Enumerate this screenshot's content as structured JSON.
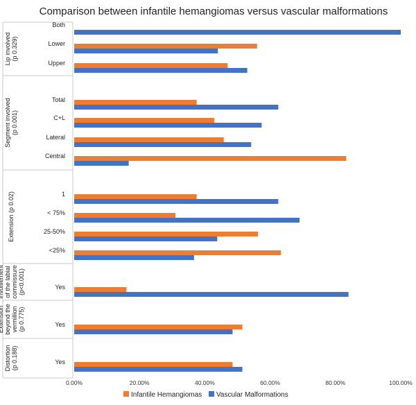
{
  "chart_data": {
    "type": "bar",
    "orientation": "horizontal",
    "title": "Comparison between infantile hemangiomas versus vascular malformations",
    "xlim": [
      0,
      100
    ],
    "x_ticks": [
      "0.00%",
      "20.00%",
      "40.00%",
      "60.00%",
      "80.00%",
      "100.00%"
    ],
    "legend": [
      "Infantile Hemangiomas",
      "Vascular Malformations"
    ],
    "legend_position": "bottom",
    "colors": {
      "ih": "#ED7D31",
      "vm": "#4472C4"
    },
    "groups": [
      {
        "label": [
          "Lip involved",
          "(p 0.329)"
        ],
        "categories": [
          {
            "label": "Both",
            "ih": 0,
            "vm": 100
          },
          {
            "label": "Lower",
            "ih": 56,
            "vm": 44
          },
          {
            "label": "Upper",
            "ih": 47,
            "vm": 53
          }
        ]
      },
      {
        "label": [
          "Segment involved",
          "(p 0.001)"
        ],
        "categories": [
          {
            "label": "Total",
            "ih": 37.5,
            "vm": 62.5
          },
          {
            "label": "C+L",
            "ih": 42.9,
            "vm": 57.4
          },
          {
            "label": "Lateral",
            "ih": 45.8,
            "vm": 54.2
          },
          {
            "label": "Central",
            "ih": 83.3,
            "vm": 16.7
          }
        ]
      },
      {
        "label": [
          "Extension (p 0.02)"
        ],
        "categories": [
          {
            "label": "1",
            "ih": 37.5,
            "vm": 62.5
          },
          {
            "label": "< 75%",
            "ih": 31,
            "vm": 69
          },
          {
            "label": "25-50%",
            "ih": 56.3,
            "vm": 43.8
          },
          {
            "label": "<25%",
            "ih": 63.3,
            "vm": 36.7
          }
        ]
      },
      {
        "label": [
          "Involvement",
          "of the labial",
          "commissure",
          "(p<0.001)"
        ],
        "categories": [
          {
            "label": "Yes",
            "ih": 16,
            "vm": 84
          }
        ]
      },
      {
        "label": [
          "Extension",
          "beyond the",
          "vermillion",
          "(p 0.775)"
        ],
        "categories": [
          {
            "label": "Yes",
            "ih": 51.5,
            "vm": 48.5
          }
        ]
      },
      {
        "label": [
          "Distortion",
          "(p 0.188)"
        ],
        "categories": [
          {
            "label": "Yes",
            "ih": 48.5,
            "vm": 51.5
          }
        ]
      }
    ]
  }
}
